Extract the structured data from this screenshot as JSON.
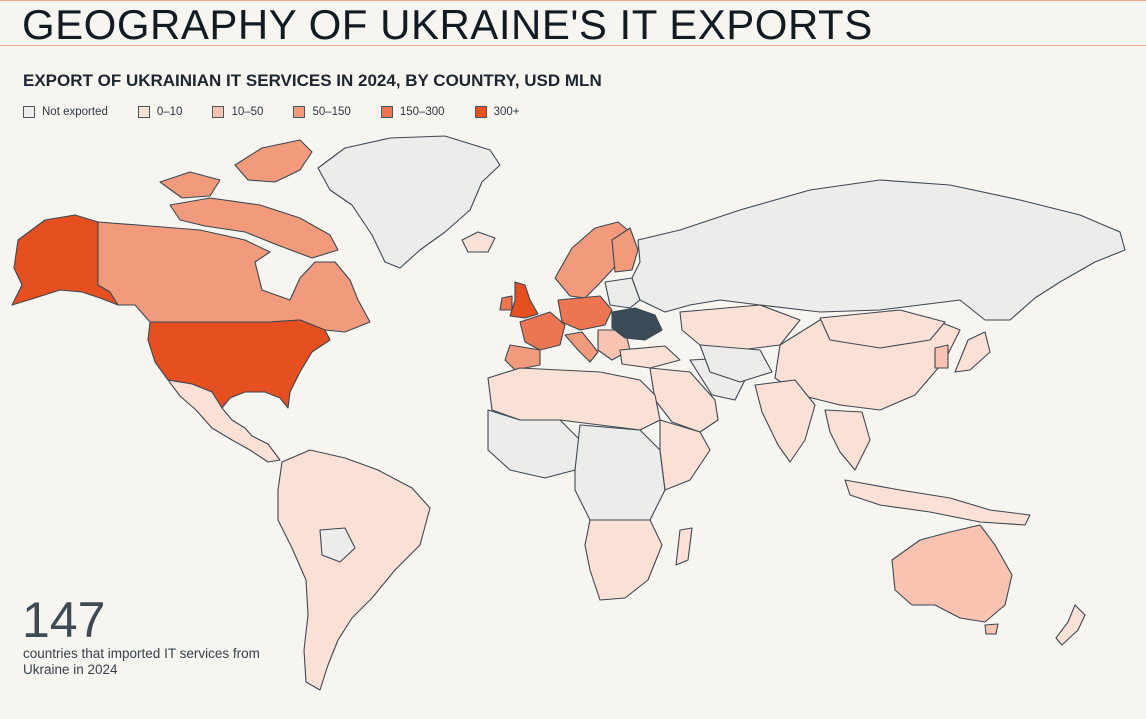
{
  "header": {
    "title": "GEOGRAPHY OF UKRAINE'S IT EXPORTS"
  },
  "map": {
    "title": "EXPORT OF UKRAINIAN IT SERVICES IN 2024, BY COUNTRY, USD MLN",
    "legend": [
      {
        "label": "Not exported",
        "color": "#ececeb"
      },
      {
        "label": "0–10",
        "color": "#fbe0d6"
      },
      {
        "label": "10–50",
        "color": "#f8c3b0"
      },
      {
        "label": "50–150",
        "color": "#f29a7c"
      },
      {
        "label": "150–300",
        "color": "#ec7651"
      },
      {
        "label": "300+",
        "color": "#e64f20"
      }
    ],
    "highlight_color": "#3b4b58",
    "highlight_country": "Ukraine"
  },
  "stat": {
    "number": "147",
    "caption": "countries that imported IT services from Ukraine in 2024"
  }
}
